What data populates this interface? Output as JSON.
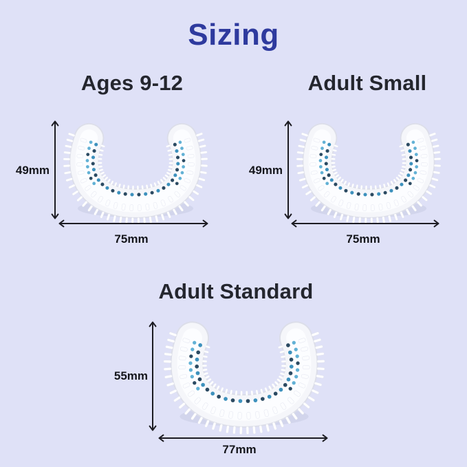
{
  "title": "Sizing",
  "sizes": [
    {
      "id": "ages-9-12",
      "label": "Ages 9-12",
      "height": "49mm",
      "width": "75mm"
    },
    {
      "id": "adult-small",
      "label": "Adult Small",
      "height": "49mm",
      "width": "75mm"
    },
    {
      "id": "adult-standard",
      "label": "Adult Standard",
      "height": "55mm",
      "width": "77mm"
    }
  ],
  "colors": {
    "background": "#dfe1f7",
    "title": "#2e3a9e",
    "heading": "#24262e",
    "dimension_text": "#15161c",
    "arrow": "#1c1c22",
    "mouthpiece_body": "#f5f6fa",
    "mouthpiece_border": "#dcdee9",
    "mouthpiece_highlight": "#fcfdff",
    "bristle_white": "#ffffff",
    "dot_teal": "#3d91bd",
    "dot_teal_light": "#62b1d5",
    "dot_navy": "#2b4a62"
  }
}
